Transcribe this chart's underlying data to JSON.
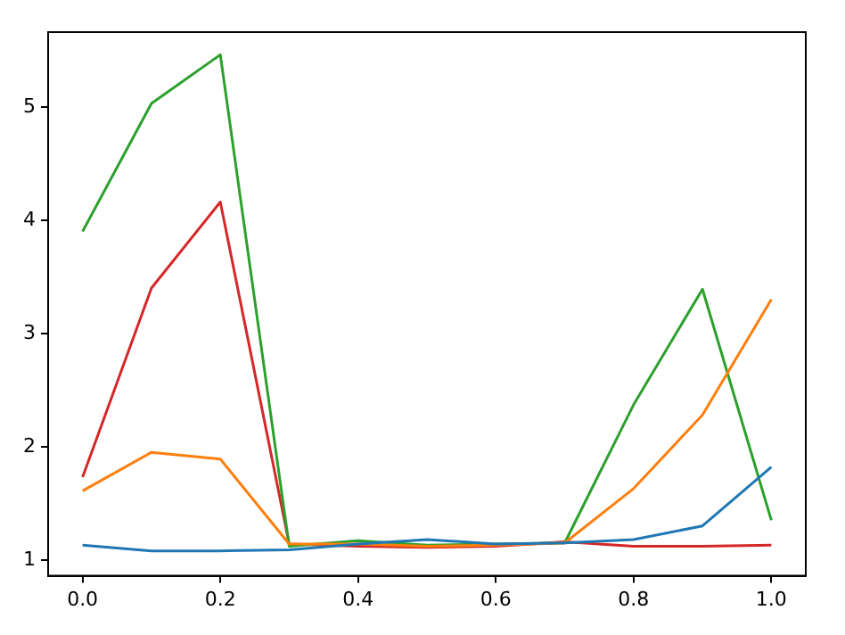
{
  "chart_data": {
    "type": "line",
    "x": [
      0,
      0.1,
      0.2,
      0.3,
      0.4,
      0.5,
      0.6,
      0.7,
      0.8,
      0.9,
      1.0
    ],
    "series": [
      {
        "color": "#1f77b4",
        "values": [
          1.13,
          1.08,
          1.08,
          1.09,
          1.14,
          1.18,
          1.14,
          1.15,
          1.18,
          1.3,
          1.82
        ]
      },
      {
        "color": "#ff7f0e",
        "values": [
          1.61,
          1.95,
          1.89,
          1.14,
          1.14,
          1.12,
          1.13,
          1.15,
          1.63,
          2.28,
          3.3
        ]
      },
      {
        "color": "#2ca02c",
        "values": [
          3.9,
          5.03,
          5.46,
          1.12,
          1.17,
          1.13,
          1.14,
          1.15,
          2.37,
          3.39,
          1.35
        ]
      },
      {
        "color": "#d62728",
        "values": [
          1.73,
          3.4,
          4.16,
          1.14,
          1.12,
          1.11,
          1.12,
          1.16,
          1.12,
          1.12,
          1.13
        ]
      }
    ],
    "xlim": [
      -0.05,
      1.05
    ],
    "xticks": [
      {
        "value": 0,
        "label": "0.0"
      },
      {
        "value": 0.2,
        "label": "0.2"
      },
      {
        "value": 0.4,
        "label": "0.4"
      },
      {
        "value": 0.6,
        "label": "0.6"
      },
      {
        "value": 0.8,
        "label": "0.8"
      },
      {
        "value": 1.0,
        "label": "1.0"
      }
    ],
    "ylim": [
      0.86,
      5.66
    ],
    "yticks": [
      1,
      2,
      3,
      4,
      5
    ],
    "grid": false,
    "legend": false,
    "marker": "none",
    "line_style": "solid"
  }
}
